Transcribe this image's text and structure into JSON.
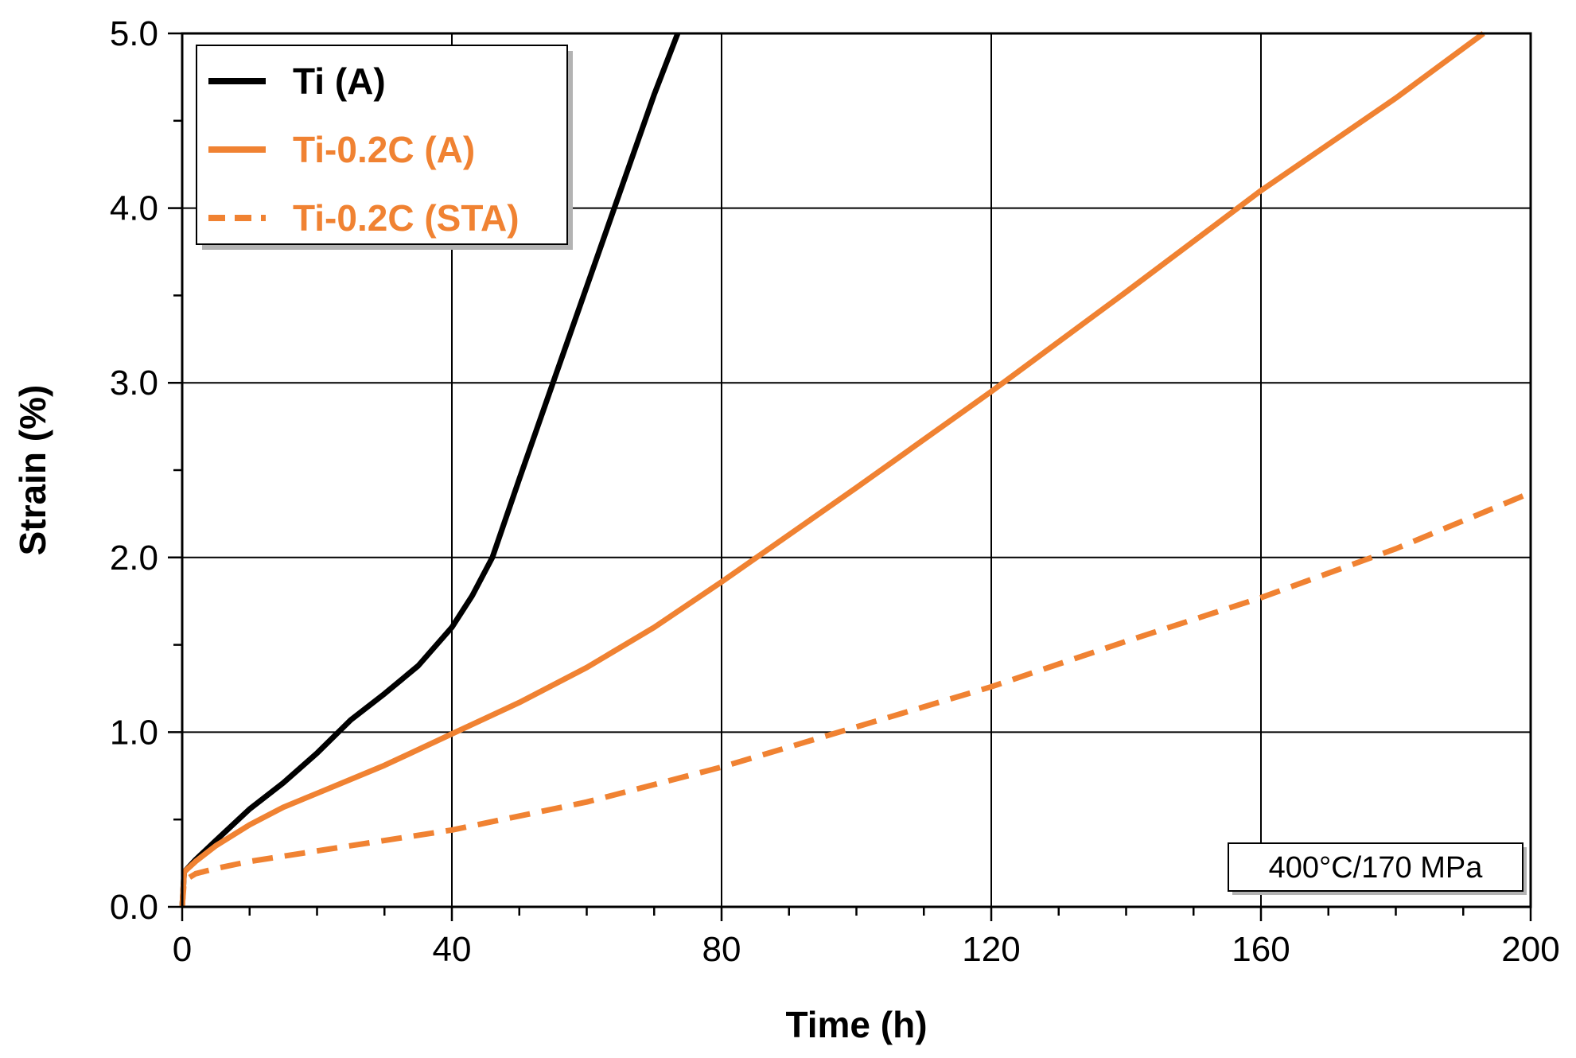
{
  "chart_data": {
    "type": "line",
    "title": "",
    "xlabel": "Time (h)",
    "ylabel": "Strain (%)",
    "xlim": [
      0,
      200
    ],
    "ylim": [
      0,
      5
    ],
    "x_ticks": [
      0,
      40,
      80,
      120,
      160,
      200
    ],
    "x_tick_labels": [
      "0",
      "40",
      "80",
      "120",
      "160",
      "200"
    ],
    "y_ticks": [
      0,
      1,
      2,
      3,
      4,
      5
    ],
    "y_tick_labels": [
      "0.0",
      "1.0",
      "2.0",
      "3.0",
      "4.0",
      "5.0"
    ],
    "x_minor_step": 10,
    "y_minor_step": 0.5,
    "grid": true,
    "legend_position": "top-left",
    "annotation": "400°C/170 MPa",
    "series": [
      {
        "name": "Ti (A)",
        "color": "#000000",
        "dash": "solid",
        "x": [
          0,
          0.3,
          2,
          5,
          10,
          15,
          20,
          25,
          30,
          35,
          40,
          43,
          46,
          50,
          55,
          60,
          65,
          70,
          73.5
        ],
        "y": [
          0,
          0.2,
          0.27,
          0.38,
          0.56,
          0.71,
          0.88,
          1.07,
          1.22,
          1.38,
          1.6,
          1.78,
          2.0,
          2.45,
          3.0,
          3.55,
          4.1,
          4.65,
          5.0
        ]
      },
      {
        "name": "Ti-0.2C (A)",
        "color": "#F08232",
        "dash": "solid",
        "x": [
          0,
          0.3,
          2,
          5,
          10,
          15,
          20,
          30,
          40,
          50,
          60,
          70,
          80,
          100,
          120,
          140,
          160,
          180,
          193
        ],
        "y": [
          0,
          0.2,
          0.26,
          0.35,
          0.47,
          0.57,
          0.65,
          0.81,
          0.99,
          1.17,
          1.37,
          1.6,
          1.86,
          2.4,
          2.95,
          3.52,
          4.1,
          4.63,
          5.0
        ]
      },
      {
        "name": "Ti-0.2C (STA)",
        "color": "#F08232",
        "dash": "dashed",
        "x": [
          0,
          0.3,
          2,
          5,
          10,
          20,
          30,
          40,
          60,
          80,
          100,
          120,
          140,
          160,
          180,
          200
        ],
        "y": [
          0,
          0.15,
          0.19,
          0.22,
          0.26,
          0.32,
          0.38,
          0.44,
          0.6,
          0.8,
          1.03,
          1.26,
          1.52,
          1.77,
          2.05,
          2.37
        ]
      }
    ]
  }
}
